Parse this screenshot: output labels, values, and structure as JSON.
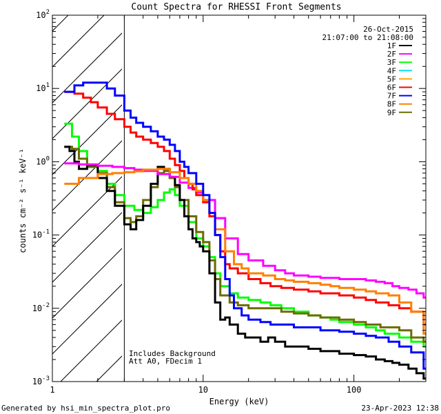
{
  "chart_data": {
    "type": "line",
    "title": "Count Spectra for RHESSI Front Segments",
    "xlabel": "Energy (keV)",
    "ylabel": "counts cm⁻² s⁻¹ keV⁻¹",
    "xscale": "log",
    "yscale": "log",
    "xlim": [
      1,
      300
    ],
    "ylim": [
      0.001,
      100
    ],
    "x_ticks": [
      {
        "v": 1,
        "label": "1"
      },
      {
        "v": 10,
        "label": "10"
      },
      {
        "v": 100,
        "label": "100"
      }
    ],
    "y_ticks": [
      {
        "v": 100,
        "base": "10",
        "exp": "2"
      },
      {
        "v": 10,
        "base": "10",
        "exp": "1"
      },
      {
        "v": 1,
        "base": "10",
        "exp": "0"
      },
      {
        "v": 0.1,
        "base": "10",
        "exp": "-1"
      },
      {
        "v": 0.01,
        "base": "10",
        "exp": "-2"
      },
      {
        "v": 0.001,
        "base": "10",
        "exp": "-3"
      }
    ],
    "hatched_region_keV": [
      1,
      3
    ],
    "annotations": {
      "date": "26-Oct-2015",
      "time_range": "21:07:00 to 21:08:00",
      "includes_background": "Includes Background",
      "att": "Att A0, FDecim 1"
    },
    "series": [
      {
        "name": "1F",
        "color": "#000000",
        "x": [
          1.2,
          1.3,
          1.4,
          1.5,
          1.7,
          2.0,
          2.3,
          2.6,
          3.0,
          3.3,
          3.6,
          4.0,
          4.5,
          5.0,
          5.5,
          6.0,
          6.5,
          7.0,
          7.5,
          8.0,
          8.5,
          9.0,
          9.5,
          10,
          11,
          12,
          13,
          14,
          15,
          17,
          19,
          21,
          24,
          27,
          30,
          35,
          40,
          45,
          50,
          60,
          70,
          80,
          90,
          100,
          120,
          140,
          160,
          180,
          200,
          230,
          260,
          290
        ],
        "values": [
          1.6,
          1.4,
          1.0,
          0.8,
          0.9,
          0.6,
          0.4,
          0.25,
          0.14,
          0.12,
          0.16,
          0.25,
          0.5,
          0.85,
          0.8,
          0.62,
          0.48,
          0.3,
          0.18,
          0.12,
          0.09,
          0.08,
          0.07,
          0.06,
          0.03,
          0.012,
          0.007,
          0.0075,
          0.006,
          0.0045,
          0.004,
          0.004,
          0.0035,
          0.004,
          0.0035,
          0.003,
          0.003,
          0.003,
          0.0028,
          0.0026,
          0.0026,
          0.0024,
          0.0024,
          0.0023,
          0.0022,
          0.002,
          0.0019,
          0.0018,
          0.0017,
          0.0015,
          0.0013,
          0.0011
        ]
      },
      {
        "name": "2F",
        "color": "#ff00ff",
        "x": [
          1.2,
          1.5,
          2.0,
          2.5,
          3.0,
          3.5,
          4.0,
          5.0,
          6.0,
          7.0,
          8.0,
          9.0,
          10,
          12,
          14,
          17,
          20,
          25,
          30,
          35,
          40,
          50,
          60,
          70,
          80,
          90,
          100,
          120,
          140,
          160,
          180,
          200,
          230,
          260,
          290
        ],
        "values": [
          0.95,
          0.92,
          0.88,
          0.85,
          0.82,
          0.78,
          0.75,
          0.68,
          0.62,
          0.52,
          0.44,
          0.38,
          0.3,
          0.17,
          0.09,
          0.055,
          0.045,
          0.038,
          0.033,
          0.03,
          0.028,
          0.027,
          0.026,
          0.026,
          0.025,
          0.025,
          0.025,
          0.024,
          0.023,
          0.022,
          0.02,
          0.019,
          0.018,
          0.016,
          0.014
        ]
      },
      {
        "name": "3F",
        "color": "#00ff00",
        "x": [
          1.2,
          1.35,
          1.5,
          1.7,
          2.0,
          2.3,
          2.6,
          3.0,
          3.5,
          4.0,
          4.5,
          5.0,
          5.5,
          6.0,
          6.5,
          7.0,
          8.0,
          9.0,
          10,
          11,
          12,
          13,
          15,
          17,
          20,
          24,
          28,
          33,
          40,
          50,
          60,
          70,
          80,
          100,
          120,
          140,
          160,
          200,
          240,
          290
        ],
        "values": [
          3.3,
          2.2,
          1.4,
          0.85,
          0.75,
          0.5,
          0.35,
          0.25,
          0.22,
          0.2,
          0.24,
          0.3,
          0.38,
          0.42,
          0.35,
          0.25,
          0.15,
          0.09,
          0.07,
          0.05,
          0.03,
          0.02,
          0.016,
          0.014,
          0.013,
          0.012,
          0.011,
          0.01,
          0.009,
          0.008,
          0.0075,
          0.007,
          0.0065,
          0.006,
          0.0055,
          0.005,
          0.0045,
          0.004,
          0.0035,
          0.003
        ]
      },
      {
        "name": "4F",
        "color": "#00e5ee",
        "x": [],
        "values": []
      },
      {
        "name": "5F",
        "color": "#ffa500",
        "x": [],
        "values": []
      },
      {
        "name": "6F",
        "color": "#ff0000",
        "x": [
          1.2,
          1.4,
          1.6,
          1.8,
          2.0,
          2.3,
          2.6,
          3.0,
          3.3,
          3.6,
          4.0,
          4.5,
          5.0,
          5.5,
          6.0,
          6.5,
          7.0,
          7.5,
          8.0,
          8.5,
          9,
          10,
          11,
          12,
          13,
          14,
          15,
          17,
          20,
          24,
          28,
          33,
          40,
          50,
          60,
          80,
          100,
          120,
          140,
          170,
          200,
          240,
          290
        ],
        "values": [
          9.0,
          8.5,
          7.5,
          6.5,
          5.5,
          4.5,
          3.8,
          3.0,
          2.5,
          2.2,
          2.0,
          1.8,
          1.6,
          1.4,
          1.1,
          0.9,
          0.75,
          0.6,
          0.5,
          0.42,
          0.35,
          0.28,
          0.18,
          0.1,
          0.06,
          0.04,
          0.035,
          0.03,
          0.025,
          0.022,
          0.02,
          0.019,
          0.018,
          0.017,
          0.016,
          0.015,
          0.014,
          0.013,
          0.012,
          0.011,
          0.01,
          0.009,
          0.006
        ]
      },
      {
        "name": "7F",
        "color": "#0000ff",
        "x": [
          1.2,
          1.4,
          1.6,
          1.8,
          2.0,
          2.3,
          2.6,
          3.0,
          3.3,
          3.6,
          4.0,
          4.5,
          5.0,
          5.5,
          6.0,
          6.5,
          7.0,
          7.5,
          8.0,
          9,
          10,
          11,
          12,
          13,
          14,
          15,
          16,
          18,
          20,
          24,
          28,
          33,
          40,
          50,
          60,
          70,
          80,
          100,
          120,
          140,
          170,
          200,
          240,
          290
        ],
        "values": [
          9.0,
          11,
          12,
          12,
          12,
          10,
          8.0,
          5.0,
          4.0,
          3.4,
          3.0,
          2.6,
          2.2,
          2.0,
          1.7,
          1.4,
          1.0,
          0.85,
          0.7,
          0.5,
          0.35,
          0.2,
          0.1,
          0.05,
          0.025,
          0.015,
          0.01,
          0.008,
          0.007,
          0.0065,
          0.006,
          0.006,
          0.0055,
          0.0055,
          0.005,
          0.005,
          0.0048,
          0.0045,
          0.0042,
          0.004,
          0.0035,
          0.003,
          0.0025,
          0.0015
        ]
      },
      {
        "name": "8F",
        "color": "#ff7f00",
        "x": [
          1.2,
          1.5,
          2.0,
          2.5,
          3.0,
          3.5,
          4.0,
          5.0,
          6.0,
          7.0,
          8.0,
          9.0,
          10,
          11,
          12,
          14,
          16,
          18,
          20,
          25,
          30,
          35,
          40,
          50,
          60,
          70,
          80,
          100,
          120,
          140,
          170,
          200,
          240,
          290
        ],
        "values": [
          0.5,
          0.6,
          0.68,
          0.7,
          0.72,
          0.74,
          0.78,
          0.8,
          0.72,
          0.6,
          0.5,
          0.4,
          0.3,
          0.2,
          0.12,
          0.06,
          0.04,
          0.035,
          0.03,
          0.028,
          0.025,
          0.024,
          0.023,
          0.022,
          0.021,
          0.02,
          0.019,
          0.018,
          0.017,
          0.016,
          0.015,
          0.012,
          0.009,
          0.0045
        ]
      },
      {
        "name": "9F",
        "color": "#6b6b00",
        "x": [
          1.2,
          1.35,
          1.5,
          1.7,
          2.0,
          2.3,
          2.6,
          3.0,
          3.3,
          3.6,
          4.0,
          4.5,
          5.0,
          5.5,
          6.0,
          6.5,
          7.0,
          8.0,
          9.0,
          10,
          11,
          12,
          13,
          15,
          17,
          20,
          24,
          28,
          33,
          40,
          50,
          60,
          80,
          100,
          120,
          150,
          200,
          240,
          290
        ],
        "values": [
          1.6,
          1.5,
          1.1,
          0.85,
          0.7,
          0.45,
          0.28,
          0.17,
          0.15,
          0.18,
          0.3,
          0.45,
          0.7,
          0.75,
          0.6,
          0.45,
          0.3,
          0.18,
          0.11,
          0.08,
          0.045,
          0.025,
          0.015,
          0.012,
          0.011,
          0.01,
          0.01,
          0.01,
          0.009,
          0.0085,
          0.008,
          0.0075,
          0.007,
          0.0065,
          0.006,
          0.0055,
          0.005,
          0.004,
          0.0035
        ]
      }
    ]
  },
  "footer": {
    "generated_by": "Generated by hsi_min_spectra_plot.pro",
    "timestamp": "23-Apr-2023 12:38"
  }
}
